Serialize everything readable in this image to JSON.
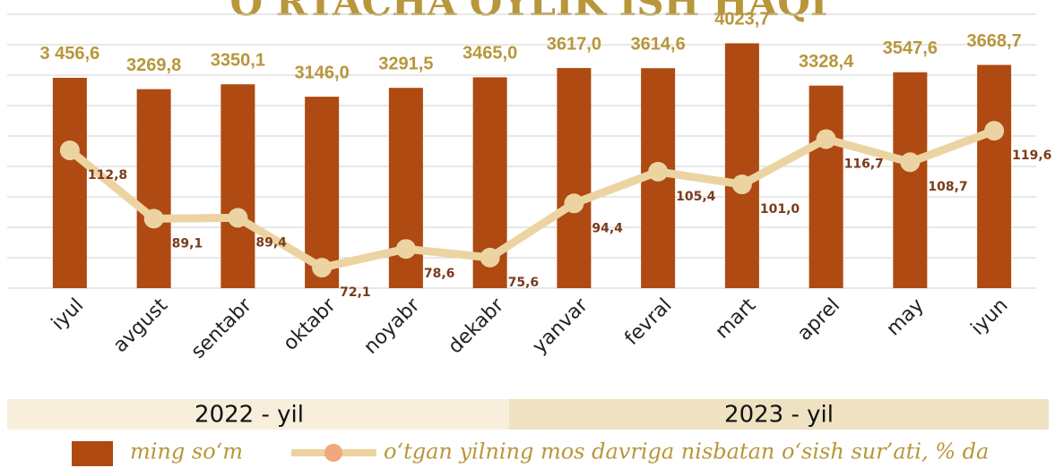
{
  "chart_data": {
    "type": "bar_line",
    "title": "O‘RTACHA OYLIK ISH HAQI",
    "categories": [
      "iyul",
      "avgust",
      "sentabr",
      "oktabr",
      "noyabr",
      "dekabr",
      "yanvar",
      "fevral",
      "mart",
      "aprel",
      "may",
      "iyun"
    ],
    "periods": [
      {
        "label": "2022 - yil",
        "color": "#f7eedc"
      },
      {
        "label": "2023 - yil",
        "color": "#efe2c2"
      }
    ],
    "series": [
      {
        "name": "ming so‘m",
        "type": "bar",
        "color": "#ae4a12",
        "label_color": "#b8963a",
        "values": [
          3456.6,
          3269.8,
          3350.1,
          3146.0,
          3291.5,
          3465.0,
          3617.0,
          3614.6,
          4023.7,
          3328.4,
          3547.6,
          3668.7
        ],
        "value_labels": [
          "3 456,6",
          "3269,8",
          "3350,1",
          "3146,0",
          "3291,5",
          "3465,0",
          "3617,0",
          "3614,6",
          "4023,7",
          "3328,4",
          "3547,6",
          "3668,7"
        ]
      },
      {
        "name": "o‘tgan yilning mos davriga nisbatan o‘sish sur’ati, % da",
        "type": "line",
        "axis": "y2",
        "color": "#ecd3a2",
        "label_color": "#7a3b1b",
        "values": [
          112.8,
          89.1,
          89.4,
          72.1,
          78.6,
          75.6,
          94.4,
          105.4,
          101.0,
          116.7,
          108.7,
          119.6
        ],
        "value_labels": [
          "112,8",
          "89,1",
          "89,4",
          "72,1",
          "78,6",
          "75,6",
          "94,4",
          "105,4",
          "101,0",
          "116,7",
          "108,7",
          "119,6"
        ]
      }
    ],
    "ylim": [
      0,
      4500
    ],
    "yticks": [
      0,
      500,
      1000,
      1500,
      2000,
      2500,
      3000,
      3500,
      4000,
      4500
    ],
    "y2lim": [
      65,
      160
    ],
    "grid": true
  }
}
